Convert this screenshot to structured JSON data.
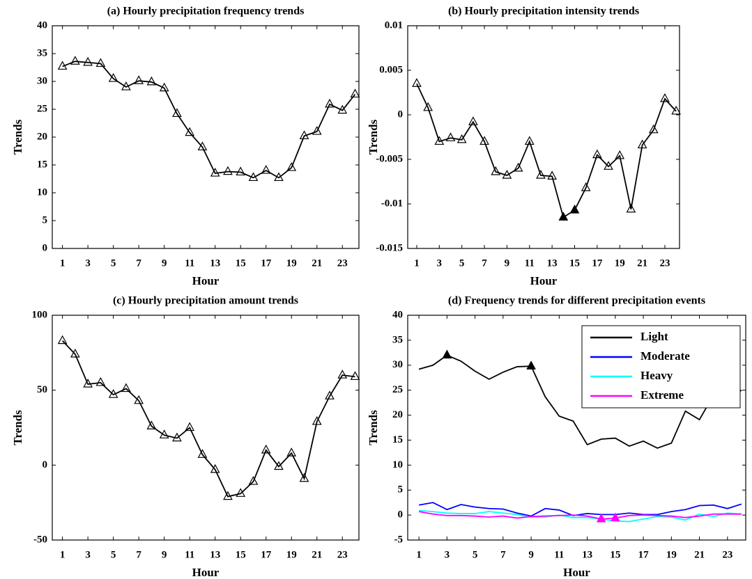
{
  "chart_data": [
    {
      "type": "line",
      "title": "(a) Hourly precipitation frequency trends",
      "xlabel": "Hour",
      "ylabel": "Trends",
      "x": [
        1,
        2,
        3,
        4,
        5,
        6,
        7,
        8,
        9,
        10,
        11,
        12,
        13,
        14,
        15,
        16,
        17,
        18,
        19,
        20,
        21,
        22,
        23,
        24
      ],
      "xlim": [
        0.2,
        24.3
      ],
      "xticks": [
        1,
        3,
        5,
        7,
        9,
        11,
        13,
        15,
        17,
        19,
        21,
        23
      ],
      "ylim": [
        0,
        40
      ],
      "yticks": [
        0,
        5,
        10,
        15,
        20,
        25,
        30,
        35,
        40
      ],
      "markers": "open",
      "series": [
        {
          "color": "#000000",
          "values": [
            32.7,
            33.6,
            33.4,
            33.2,
            30.5,
            29.0,
            30.1,
            29.9,
            28.8,
            24.2,
            20.8,
            18.2,
            13.5,
            13.8,
            13.7,
            12.7,
            14.0,
            12.7,
            14.5,
            20.2,
            21.0,
            25.9,
            24.8,
            27.7
          ]
        }
      ]
    },
    {
      "type": "line",
      "title": "(b) Hourly precipitation intensity trends",
      "xlabel": "Hour",
      "ylabel": "Trends",
      "x": [
        1,
        2,
        3,
        4,
        5,
        6,
        7,
        8,
        9,
        10,
        11,
        12,
        13,
        14,
        15,
        16,
        17,
        18,
        19,
        20,
        21,
        22,
        23,
        24
      ],
      "xlim": [
        0.2,
        24.3
      ],
      "xticks": [
        1,
        3,
        5,
        7,
        9,
        11,
        13,
        15,
        17,
        19,
        21,
        23
      ],
      "ylim": [
        -0.015,
        0.01
      ],
      "yticks": [
        -0.015,
        -0.01,
        -0.005,
        0,
        0.005,
        0.01
      ],
      "markers": "open",
      "series": [
        {
          "color": "#000000",
          "values": [
            0.0035,
            0.0008,
            -0.003,
            -0.0026,
            -0.0028,
            -0.0008,
            -0.003,
            -0.0064,
            -0.0068,
            -0.006,
            -0.003,
            -0.0068,
            -0.0069,
            -0.0115,
            -0.0107,
            -0.0082,
            -0.0045,
            -0.0058,
            -0.0046,
            -0.0106,
            -0.0034,
            -0.0017,
            0.0018,
            0.0004
          ],
          "significant": [
            14,
            15
          ]
        }
      ]
    },
    {
      "type": "line",
      "title": "(c) Hourly precipitation amount trends",
      "xlabel": "Hour",
      "ylabel": "Trends",
      "x": [
        1,
        2,
        3,
        4,
        5,
        6,
        7,
        8,
        9,
        10,
        11,
        12,
        13,
        14,
        15,
        16,
        17,
        18,
        19,
        20,
        21,
        22,
        23,
        24
      ],
      "xlim": [
        0.2,
        24.3
      ],
      "xticks": [
        1,
        3,
        5,
        7,
        9,
        11,
        13,
        15,
        17,
        19,
        21,
        23
      ],
      "ylim": [
        -50,
        100
      ],
      "yticks": [
        -50,
        0,
        50,
        100
      ],
      "markers": "open",
      "series": [
        {
          "color": "#000000",
          "values": [
            83,
            74,
            54,
            55,
            47,
            51,
            43,
            26,
            20,
            18,
            25,
            7,
            -3,
            -21,
            -19,
            -11,
            10,
            -1,
            8,
            -9,
            29,
            46,
            60,
            59
          ]
        }
      ]
    },
    {
      "type": "line",
      "title": "(d) Frequency trends for different precipitation events",
      "xlabel": "Hour",
      "ylabel": "Trends",
      "x": [
        1,
        2,
        3,
        4,
        5,
        6,
        7,
        8,
        9,
        10,
        11,
        12,
        13,
        14,
        15,
        16,
        17,
        18,
        19,
        20,
        21,
        22,
        23,
        24
      ],
      "xlim": [
        0.2,
        24.3
      ],
      "xticks": [
        1,
        3,
        5,
        7,
        9,
        11,
        13,
        15,
        17,
        19,
        21,
        23
      ],
      "ylim": [
        -5,
        40
      ],
      "yticks": [
        -5,
        0,
        5,
        10,
        15,
        20,
        25,
        30,
        35,
        40
      ],
      "markers": "significant",
      "legend": "upper right",
      "series": [
        {
          "name": "Light",
          "color": "#000000",
          "values": [
            29.2,
            30.0,
            32.0,
            30.8,
            28.8,
            27.2,
            28.6,
            29.7,
            29.8,
            23.7,
            19.8,
            18.8,
            14.1,
            15.2,
            15.4,
            13.8,
            14.8,
            13.4,
            14.4,
            20.8,
            19.1,
            24.0,
            23.0,
            25.0
          ],
          "significant": [
            3,
            9
          ]
        },
        {
          "name": "Moderate",
          "color": "#0000ff",
          "values": [
            2.0,
            2.5,
            1.1,
            2.1,
            1.6,
            1.3,
            1.2,
            0.4,
            -0.2,
            1.3,
            1.0,
            -0.1,
            0.3,
            0.1,
            0.1,
            0.4,
            0.1,
            0.1,
            0.7,
            1.1,
            1.9,
            2.0,
            1.3,
            2.2
          ]
        },
        {
          "name": "Heavy",
          "color": "#00ffff",
          "values": [
            0.9,
            0.7,
            0.4,
            0.3,
            0.3,
            0.7,
            0.4,
            0.1,
            -0.4,
            -0.4,
            0.0,
            -0.5,
            -0.5,
            -0.8,
            -1.2,
            -1.3,
            -0.8,
            -0.3,
            -0.4,
            -1.0,
            0.2,
            -0.3,
            0.4,
            0.2
          ]
        },
        {
          "name": "Extreme",
          "color": "#ff00ff",
          "values": [
            0.7,
            0.2,
            -0.1,
            -0.1,
            -0.2,
            -0.4,
            -0.2,
            -0.6,
            -0.3,
            -0.2,
            -0.1,
            0.0,
            -0.2,
            -0.8,
            -0.6,
            -0.1,
            0.0,
            -0.1,
            -0.2,
            -0.5,
            -0.2,
            0.2,
            0.2,
            0.2
          ],
          "significant": [
            14,
            15
          ]
        }
      ]
    }
  ]
}
